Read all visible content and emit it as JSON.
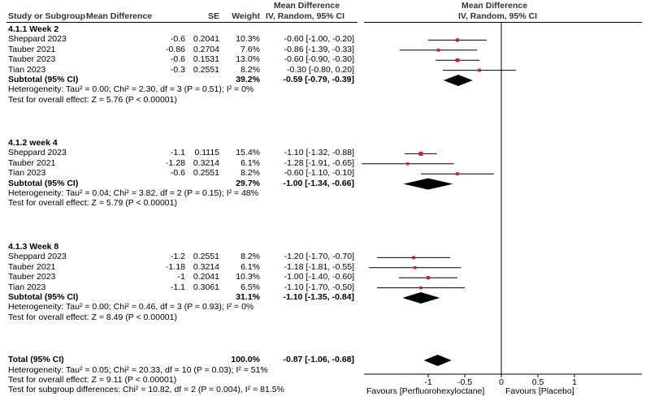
{
  "chart_data": {
    "type": "forest",
    "headers": {
      "study": "Study or Subgroup",
      "md": "Mean Difference",
      "se": "SE",
      "weight": "Weight",
      "ci_top": "Mean Difference",
      "ci_bottom": "IV, Random, 95% CI",
      "plot_top": "Mean Difference",
      "plot_bottom": "IV, Random, 95% CI"
    },
    "subgroups": [
      {
        "title": "4.1.1 Week 2",
        "studies": [
          {
            "name": "Sheppard 2023",
            "md": "-0.6",
            "se": "0.2041",
            "weight": "10.3%",
            "ci": "-0.60 [-1.00, -0.20]",
            "est": -0.6,
            "lo": -1.0,
            "hi": -0.2,
            "w": 10.3
          },
          {
            "name": "Tauber 2021",
            "md": "-0.86",
            "se": "0.2704",
            "weight": "7.6%",
            "ci": "-0.86 [-1.39, -0.33]",
            "est": -0.86,
            "lo": -1.39,
            "hi": -0.33,
            "w": 7.6
          },
          {
            "name": "Tauber 2023",
            "md": "-0.6",
            "se": "0.1531",
            "weight": "13.0%",
            "ci": "-0.60 [-0.90, -0.30]",
            "est": -0.6,
            "lo": -0.9,
            "hi": -0.3,
            "w": 13.0
          },
          {
            "name": "Tian 2023",
            "md": "-0.3",
            "se": "0.2551",
            "weight": "8.2%",
            "ci": "-0.30 [-0.80, 0.20]",
            "est": -0.3,
            "lo": -0.8,
            "hi": 0.2,
            "w": 8.2
          }
        ],
        "subtotal": {
          "label": "Subtotal (95% CI)",
          "weight": "39.2%",
          "ci": "-0.59 [-0.79, -0.39]",
          "est": -0.59,
          "lo": -0.79,
          "hi": -0.39
        },
        "heterogeneity": "Heterogeneity: Tau² = 0.00; Chi² = 2.30, df = 3 (P = 0.51); I² = 0%",
        "overall": "Test for overall effect: Z = 5.76 (P < 0.00001)"
      },
      {
        "title": "4.1.2 week 4",
        "studies": [
          {
            "name": "Sheppard 2023",
            "md": "-1.1",
            "se": "0.1115",
            "weight": "15.4%",
            "ci": "-1.10 [-1.32, -0.88]",
            "est": -1.1,
            "lo": -1.32,
            "hi": -0.88,
            "w": 15.4
          },
          {
            "name": "Tauber 2021",
            "md": "-1.28",
            "se": "0.3214",
            "weight": "6.1%",
            "ci": "-1.28 [-1.91, -0.65]",
            "est": -1.28,
            "lo": -1.91,
            "hi": -0.65,
            "w": 6.1
          },
          {
            "name": "Tian 2023",
            "md": "-0.6",
            "se": "0.2551",
            "weight": "8.2%",
            "ci": "-0.60 [-1.10, -0.10]",
            "est": -0.6,
            "lo": -1.1,
            "hi": -0.1,
            "w": 8.2
          }
        ],
        "subtotal": {
          "label": "Subtotal (95% CI)",
          "weight": "29.7%",
          "ci": "-1.00 [-1.34, -0.66]",
          "est": -1.0,
          "lo": -1.34,
          "hi": -0.66
        },
        "heterogeneity": "Heterogeneity: Tau² = 0.04; Chi² = 3.82, df = 2 (P = 0.15); I² = 48%",
        "overall": "Test for overall effect: Z = 5.79 (P < 0.00001)"
      },
      {
        "title": "4.1.3 Week 8",
        "studies": [
          {
            "name": "Sheppard 2023",
            "md": "-1.2",
            "se": "0.2551",
            "weight": "8.2%",
            "ci": "-1.20 [-1.70, -0.70]",
            "est": -1.2,
            "lo": -1.7,
            "hi": -0.7,
            "w": 8.2
          },
          {
            "name": "Tauber 2021",
            "md": "-1.18",
            "se": "0.3214",
            "weight": "6.1%",
            "ci": "-1.18 [-1.81, -0.55]",
            "est": -1.18,
            "lo": -1.81,
            "hi": -0.55,
            "w": 6.1
          },
          {
            "name": "Tauber 2023",
            "md": "-1",
            "se": "0.2041",
            "weight": "10.3%",
            "ci": "-1.00 [-1.40, -0.60]",
            "est": -1.0,
            "lo": -1.4,
            "hi": -0.6,
            "w": 10.3
          },
          {
            "name": "Tian 2023",
            "md": "-1.1",
            "se": "0.3061",
            "weight": "6.5%",
            "ci": "-1.10 [-1.70, -0.50]",
            "est": -1.1,
            "lo": -1.7,
            "hi": -0.5,
            "w": 6.5
          }
        ],
        "subtotal": {
          "label": "Subtotal (95% CI)",
          "weight": "31.1%",
          "ci": "-1.10 [-1.35, -0.84]",
          "est": -1.1,
          "lo": -1.35,
          "hi": -0.84
        },
        "heterogeneity": "Heterogeneity: Tau² = 0.00; Chi² = 0.46, df = 3 (P = 0.93); I² = 0%",
        "overall": "Test for overall effect: Z = 8.49 (P < 0.00001)"
      }
    ],
    "total": {
      "label": "Total (95% CI)",
      "weight": "100.0%",
      "ci": "-0.87 [-1.06, -0.68]",
      "est": -0.87,
      "lo": -1.06,
      "hi": -0.68,
      "heterogeneity": "Heterogeneity: Tau² = 0.05; Chi² = 20.33, df = 10 (P = 0.03); I² = 51%",
      "overall": "Test for overall effect: Z = 9.11 (P < 0.00001)",
      "subgroup_diff": "Test for subgroup differences: Chi² = 10.82, df = 2 (P = 0.004), I² = 81.5%"
    },
    "axis": {
      "range": [
        -1.85,
        1.9
      ],
      "ticks": [
        -1,
        -0.5,
        0,
        0.5,
        1
      ],
      "tick_labels": [
        "-1",
        "-0.5",
        "0",
        "0.5",
        "1"
      ],
      "favours_left": "Favours [Perfluorohexyloctane]",
      "favours_right": "Favours [Placebo]"
    },
    "colors": {
      "study_marker": "#c0272d",
      "summary": "#000000",
      "text": "#000000"
    }
  }
}
